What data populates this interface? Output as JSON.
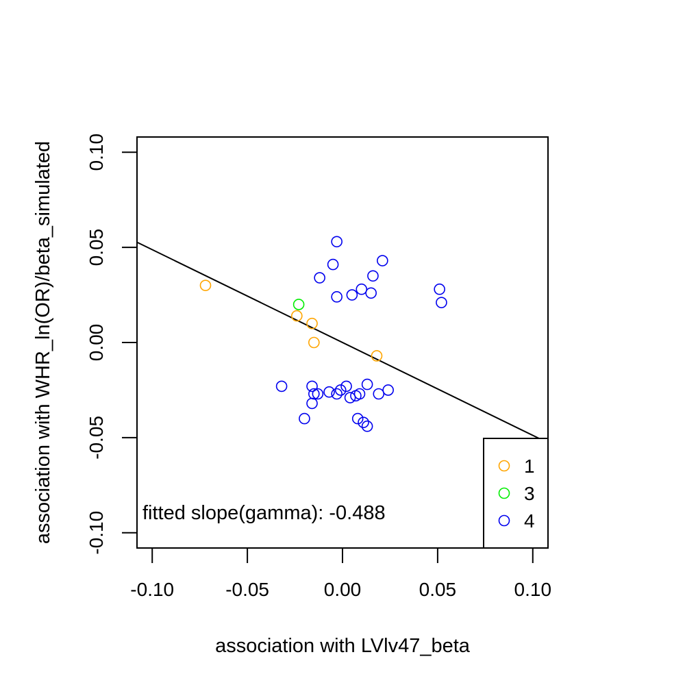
{
  "chart_data": {
    "type": "scatter",
    "title": "",
    "xlabel": "association with LVlv47_beta",
    "ylabel": "association with WHR_ln(OR)/beta_simulated",
    "xlim": [
      -0.108,
      0.108
    ],
    "ylim": [
      -0.108,
      0.108
    ],
    "x_ticks": [
      -0.1,
      -0.05,
      0.0,
      0.05,
      0.1
    ],
    "x_tick_labels": [
      "-0.10",
      "-0.05",
      "0.00",
      "0.05",
      "0.10"
    ],
    "y_ticks": [
      -0.1,
      -0.05,
      0.0,
      0.05,
      0.1
    ],
    "y_tick_labels": [
      "-0.10",
      "-0.05",
      "0.00",
      "0.05",
      "0.10"
    ],
    "grid": false,
    "legend_position": "bottom-right",
    "annotation": "fitted slope(gamma): -0.488",
    "fit_line": {
      "slope": -0.488,
      "intercept": 0.0
    },
    "series": [
      {
        "name": "1",
        "color": "#FFA500",
        "points": [
          {
            "x": -0.072,
            "y": 0.03
          },
          {
            "x": -0.024,
            "y": 0.014
          },
          {
            "x": -0.016,
            "y": 0.01
          },
          {
            "x": -0.015,
            "y": 0.0
          },
          {
            "x": 0.018,
            "y": -0.007
          }
        ]
      },
      {
        "name": "3",
        "color": "#00EE00",
        "points": [
          {
            "x": -0.023,
            "y": 0.02
          }
        ]
      },
      {
        "name": "4",
        "color": "#0000EE",
        "points": [
          {
            "x": -0.003,
            "y": 0.053
          },
          {
            "x": -0.005,
            "y": 0.041
          },
          {
            "x": 0.021,
            "y": 0.043
          },
          {
            "x": -0.012,
            "y": 0.034
          },
          {
            "x": 0.016,
            "y": 0.035
          },
          {
            "x": -0.003,
            "y": 0.024
          },
          {
            "x": 0.005,
            "y": 0.025
          },
          {
            "x": 0.01,
            "y": 0.028
          },
          {
            "x": 0.015,
            "y": 0.026
          },
          {
            "x": 0.051,
            "y": 0.028
          },
          {
            "x": 0.052,
            "y": 0.021
          },
          {
            "x": -0.032,
            "y": -0.023
          },
          {
            "x": -0.016,
            "y": -0.023
          },
          {
            "x": -0.015,
            "y": -0.027
          },
          {
            "x": -0.013,
            "y": -0.027
          },
          {
            "x": -0.016,
            "y": -0.032
          },
          {
            "x": -0.02,
            "y": -0.04
          },
          {
            "x": -0.007,
            "y": -0.026
          },
          {
            "x": -0.003,
            "y": -0.027
          },
          {
            "x": -0.001,
            "y": -0.025
          },
          {
            "x": 0.002,
            "y": -0.023
          },
          {
            "x": 0.004,
            "y": -0.029
          },
          {
            "x": 0.007,
            "y": -0.028
          },
          {
            "x": 0.009,
            "y": -0.027
          },
          {
            "x": 0.013,
            "y": -0.022
          },
          {
            "x": 0.019,
            "y": -0.027
          },
          {
            "x": 0.024,
            "y": -0.025
          },
          {
            "x": 0.008,
            "y": -0.04
          },
          {
            "x": 0.011,
            "y": -0.042
          },
          {
            "x": 0.013,
            "y": -0.044
          }
        ]
      }
    ]
  }
}
